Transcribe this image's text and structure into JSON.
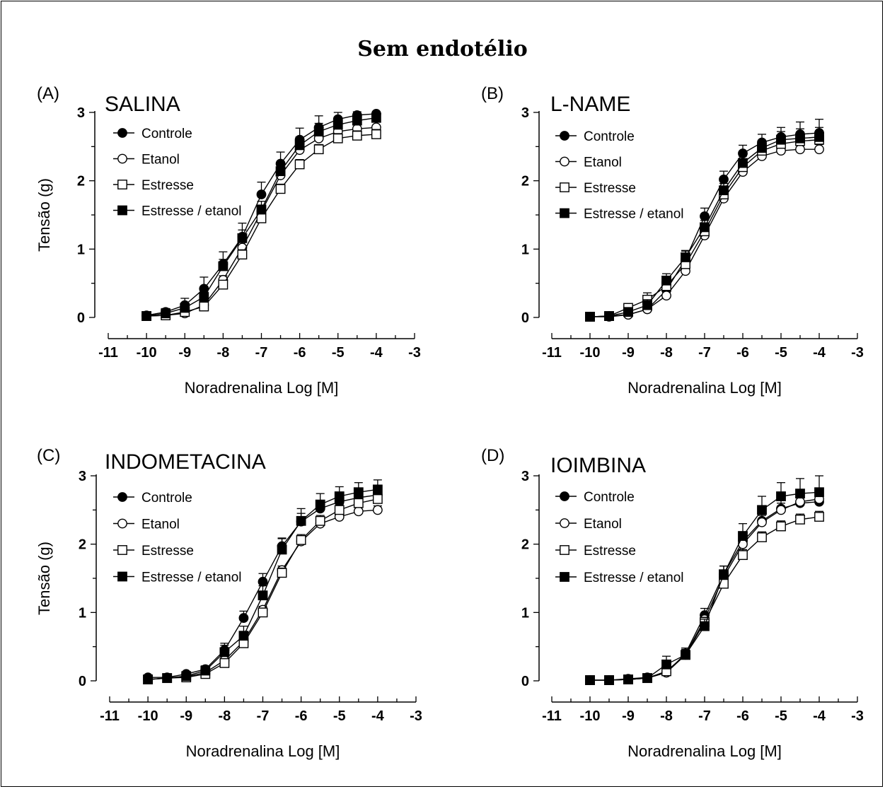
{
  "title": "Sem endotélio",
  "chart_data": [
    {
      "type": "line",
      "panel_label": "(A)",
      "title": "SALINA",
      "xlabel": "Noradrenalina Log [M]",
      "ylabel": "Tensão (g)",
      "xlim": [
        -11,
        -3
      ],
      "ylim": [
        0,
        3
      ],
      "x_ticks": [
        -11,
        -10,
        -9,
        -8,
        -7,
        -6,
        -5,
        -4,
        -3
      ],
      "y_ticks": [
        0,
        1,
        2,
        3
      ],
      "legend_position": "top-left",
      "grid": false,
      "x": [
        -10,
        -9.5,
        -9,
        -8.5,
        -8,
        -7.5,
        -7,
        -6.5,
        -6,
        -5.5,
        -5,
        -4.5,
        -4
      ],
      "series": [
        {
          "name": "Controle",
          "marker": "filled-circle",
          "values": [
            0.03,
            0.08,
            0.18,
            0.42,
            0.78,
            1.18,
            1.8,
            2.25,
            2.6,
            2.78,
            2.9,
            2.96,
            2.98
          ],
          "errors": [
            0,
            0.05,
            0.1,
            0.17,
            0.18,
            0.2,
            0.18,
            0.17,
            0.17,
            0.17,
            0.1,
            0.05,
            0.03
          ]
        },
        {
          "name": "Etanol",
          "marker": "open-circle",
          "values": [
            0.02,
            0.03,
            0.06,
            0.18,
            0.55,
            1.02,
            1.55,
            2.08,
            2.45,
            2.62,
            2.72,
            2.76,
            2.78
          ],
          "errors": [
            0,
            0.03,
            0.04,
            0.05,
            0.06,
            0.08,
            0.08,
            0.08,
            0.08,
            0.08,
            0.08,
            0.08,
            0.08
          ]
        },
        {
          "name": "Estresse",
          "marker": "open-square",
          "values": [
            0.02,
            0.03,
            0.08,
            0.16,
            0.48,
            0.92,
            1.45,
            1.88,
            2.24,
            2.46,
            2.62,
            2.66,
            2.68
          ],
          "errors": [
            0,
            0.03,
            0.05,
            0.05,
            0.06,
            0.07,
            0.07,
            0.07,
            0.07,
            0.07,
            0.07,
            0.07,
            0.07
          ]
        },
        {
          "name": "Estresse / etanol",
          "marker": "filled-square",
          "values": [
            0.02,
            0.06,
            0.14,
            0.3,
            0.75,
            1.16,
            1.58,
            2.14,
            2.52,
            2.72,
            2.82,
            2.88,
            2.92
          ],
          "errors": [
            0,
            0.04,
            0.06,
            0.08,
            0.1,
            0.12,
            0.12,
            0.12,
            0.12,
            0.12,
            0.1,
            0.08,
            0.06
          ]
        }
      ]
    },
    {
      "type": "line",
      "panel_label": "(B)",
      "title": "L-NAME",
      "xlabel": "Noradrenalina Log [M]",
      "ylabel": "",
      "xlim": [
        -11,
        -3
      ],
      "ylim": [
        0,
        3
      ],
      "x_ticks": [
        -11,
        -10,
        -9,
        -8,
        -7,
        -6,
        -5,
        -4,
        -3
      ],
      "y_ticks": [
        0,
        1,
        2,
        3
      ],
      "legend_position": "top-left",
      "grid": false,
      "x": [
        -10,
        -9.5,
        -9,
        -8.5,
        -8,
        -7.5,
        -7,
        -6.5,
        -6,
        -5.5,
        -5,
        -4.5,
        -4
      ],
      "series": [
        {
          "name": "Controle",
          "marker": "filled-circle",
          "values": [
            0.01,
            0.02,
            0.04,
            0.12,
            0.4,
            0.85,
            1.48,
            2.02,
            2.4,
            2.56,
            2.64,
            2.68,
            2.7
          ],
          "errors": [
            0,
            0.02,
            0.03,
            0.08,
            0.1,
            0.12,
            0.12,
            0.12,
            0.12,
            0.12,
            0.14,
            0.18,
            0.2
          ]
        },
        {
          "name": "Etanol",
          "marker": "open-circle",
          "values": [
            0.01,
            0.01,
            0.04,
            0.12,
            0.32,
            0.68,
            1.2,
            1.74,
            2.13,
            2.36,
            2.44,
            2.46,
            2.46
          ],
          "errors": [
            0,
            0.02,
            0.03,
            0.05,
            0.06,
            0.07,
            0.07,
            0.07,
            0.07,
            0.07,
            0.07,
            0.07,
            0.07
          ]
        },
        {
          "name": "Estresse",
          "marker": "open-square",
          "values": [
            0.01,
            0.02,
            0.14,
            0.26,
            0.46,
            0.78,
            1.26,
            1.8,
            2.2,
            2.44,
            2.54,
            2.58,
            2.6
          ],
          "errors": [
            0,
            0.02,
            0.04,
            0.1,
            0.1,
            0.1,
            0.1,
            0.1,
            0.1,
            0.1,
            0.1,
            0.1,
            0.1
          ]
        },
        {
          "name": "Estresse / etanol",
          "marker": "filled-square",
          "values": [
            0.01,
            0.02,
            0.08,
            0.18,
            0.54,
            0.88,
            1.32,
            1.86,
            2.26,
            2.48,
            2.6,
            2.62,
            2.64
          ],
          "errors": [
            0,
            0.02,
            0.04,
            0.08,
            0.1,
            0.1,
            0.1,
            0.1,
            0.1,
            0.1,
            0.12,
            0.14,
            0.14
          ]
        }
      ]
    },
    {
      "type": "line",
      "panel_label": "(C)",
      "title": "INDOMETACINA",
      "xlabel": "Noradrenalina Log [M]",
      "ylabel": "Tensão (g)",
      "xlim": [
        -11,
        -3
      ],
      "ylim": [
        0,
        3
      ],
      "x_ticks": [
        -11,
        -10,
        -9,
        -8,
        -7,
        -6,
        -5,
        -4,
        -3
      ],
      "y_ticks": [
        0,
        1,
        2,
        3
      ],
      "legend_position": "top-left",
      "grid": false,
      "x": [
        -10,
        -9.5,
        -9,
        -8.5,
        -8,
        -7.5,
        -7,
        -6.5,
        -6,
        -5.5,
        -5,
        -4.5,
        -4
      ],
      "series": [
        {
          "name": "Controle",
          "marker": "filled-circle",
          "values": [
            0.05,
            0.05,
            0.1,
            0.17,
            0.45,
            0.92,
            1.45,
            1.97,
            2.33,
            2.52,
            2.62,
            2.68,
            2.72
          ],
          "errors": [
            0,
            0.02,
            0.03,
            0.05,
            0.1,
            0.1,
            0.12,
            0.12,
            0.12,
            0.12,
            0.12,
            0.12,
            0.12
          ]
        },
        {
          "name": "Etanol",
          "marker": "open-circle",
          "values": [
            0.02,
            0.04,
            0.06,
            0.12,
            0.3,
            0.58,
            1.04,
            1.62,
            2.04,
            2.3,
            2.4,
            2.48,
            2.5
          ],
          "errors": [
            0,
            0.02,
            0.02,
            0.04,
            0.04,
            0.05,
            0.05,
            0.06,
            0.06,
            0.06,
            0.06,
            0.06,
            0.06
          ]
        },
        {
          "name": "Estresse",
          "marker": "open-square",
          "values": [
            0.02,
            0.04,
            0.05,
            0.1,
            0.26,
            0.55,
            1.0,
            1.58,
            2.06,
            2.34,
            2.5,
            2.6,
            2.66
          ],
          "errors": [
            0,
            0.02,
            0.02,
            0.04,
            0.05,
            0.06,
            0.06,
            0.07,
            0.08,
            0.08,
            0.08,
            0.08,
            0.08
          ]
        },
        {
          "name": "Estresse / etanol",
          "marker": "filled-square",
          "values": [
            0.02,
            0.04,
            0.07,
            0.15,
            0.42,
            0.66,
            1.25,
            1.92,
            2.34,
            2.58,
            2.7,
            2.76,
            2.8
          ],
          "errors": [
            0,
            0.02,
            0.03,
            0.05,
            0.1,
            0.14,
            0.14,
            0.16,
            0.18,
            0.16,
            0.14,
            0.14,
            0.14
          ]
        }
      ]
    },
    {
      "type": "line",
      "panel_label": "(D)",
      "title": "IOIMBINA",
      "xlabel": "Noradrenalina Log [M]",
      "ylabel": "",
      "xlim": [
        -11,
        -3
      ],
      "ylim": [
        0,
        3
      ],
      "x_ticks": [
        -11,
        -10,
        -9,
        -8,
        -7,
        -6,
        -5,
        -4,
        -3
      ],
      "y_ticks": [
        0,
        1,
        2,
        3
      ],
      "legend_position": "top-left",
      "grid": false,
      "x": [
        -10,
        -9.5,
        -9,
        -8.5,
        -8,
        -7.5,
        -7,
        -6.5,
        -6,
        -5.5,
        -5,
        -4.5,
        -4
      ],
      "series": [
        {
          "name": "Controle",
          "marker": "filled-circle",
          "values": [
            0.01,
            0.01,
            0.03,
            0.05,
            0.12,
            0.4,
            0.96,
            1.56,
            2.04,
            2.34,
            2.52,
            2.6,
            2.62
          ],
          "errors": [
            0,
            0.02,
            0.03,
            0.04,
            0.06,
            0.08,
            0.1,
            0.12,
            0.12,
            0.12,
            0.12,
            0.12,
            0.12
          ]
        },
        {
          "name": "Etanol",
          "marker": "open-circle",
          "values": [
            0.01,
            0.01,
            0.02,
            0.04,
            0.12,
            0.38,
            0.9,
            1.52,
            2.0,
            2.32,
            2.5,
            2.62,
            2.66
          ],
          "errors": [
            0,
            0.02,
            0.02,
            0.03,
            0.05,
            0.06,
            0.08,
            0.1,
            0.1,
            0.1,
            0.1,
            0.1,
            0.1
          ]
        },
        {
          "name": "Estresse",
          "marker": "open-square",
          "values": [
            0.01,
            0.01,
            0.02,
            0.04,
            0.14,
            0.38,
            0.86,
            1.42,
            1.84,
            2.1,
            2.26,
            2.36,
            2.4
          ],
          "errors": [
            0,
            0.02,
            0.02,
            0.03,
            0.05,
            0.06,
            0.07,
            0.08,
            0.08,
            0.08,
            0.08,
            0.08,
            0.08
          ]
        },
        {
          "name": "Estresse / etanol",
          "marker": "filled-square",
          "values": [
            0.01,
            0.01,
            0.02,
            0.04,
            0.24,
            0.38,
            0.8,
            1.56,
            2.12,
            2.5,
            2.7,
            2.74,
            2.76
          ],
          "errors": [
            0,
            0.02,
            0.02,
            0.04,
            0.12,
            0.08,
            0.1,
            0.12,
            0.18,
            0.2,
            0.2,
            0.22,
            0.24
          ]
        }
      ]
    }
  ]
}
